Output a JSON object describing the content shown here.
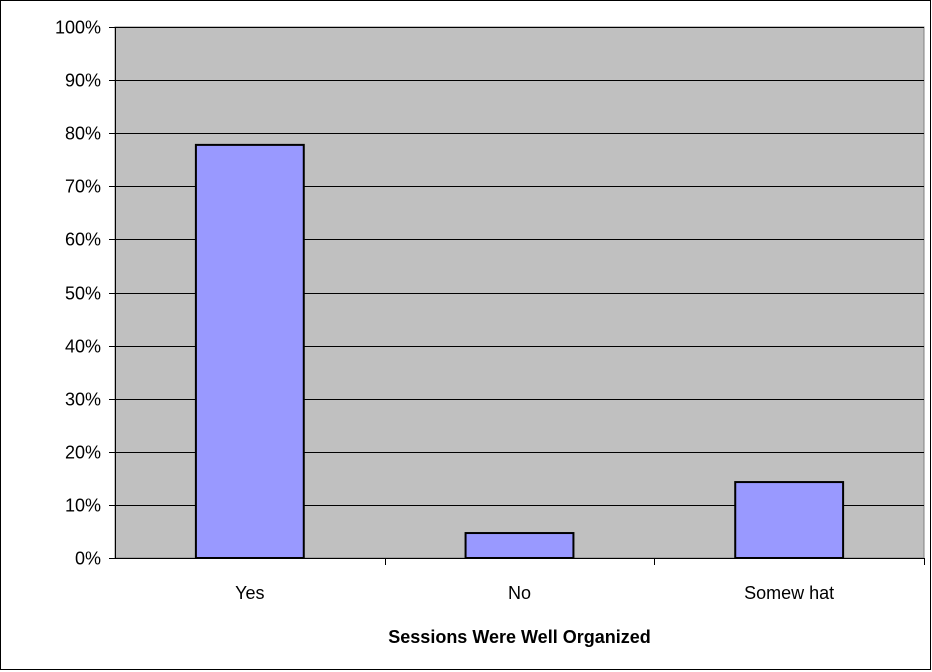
{
  "chart_data": {
    "type": "bar",
    "title": "",
    "xlabel": "Sessions Were Well Organized",
    "ylabel": "",
    "categories": [
      "Yes",
      "No",
      "Somew hat"
    ],
    "values": [
      0.778,
      0.047,
      0.143
    ],
    "ylim": [
      0,
      1
    ],
    "yticks": [
      "0%",
      "10%",
      "20%",
      "30%",
      "40%",
      "50%",
      "60%",
      "70%",
      "80%",
      "90%",
      "100%"
    ],
    "grid": true,
    "legend": "none",
    "colors": {
      "bar_fill": "#9999FF",
      "bar_stroke": "#000000",
      "plot_background": "#C0C0C0",
      "gridline": "#000000"
    }
  }
}
